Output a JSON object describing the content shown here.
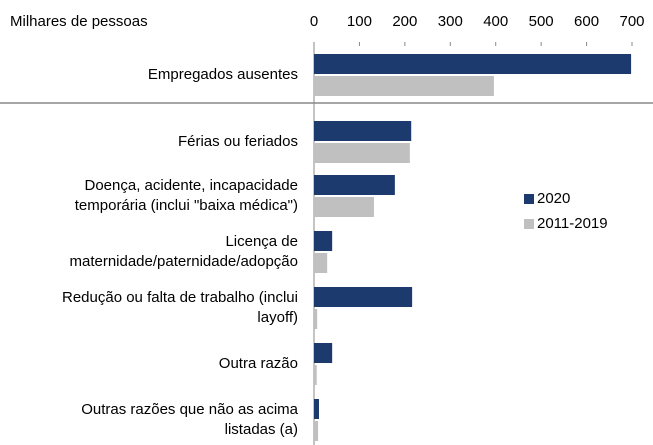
{
  "chart_data": {
    "type": "hbar",
    "axis_label": "Milhares de pessoas",
    "categories": [
      "Empregados ausentes",
      "Férias ou feriados",
      "Doença, acidente, incapacidade\ntemporária (inclui \"baixa médica\")",
      "Licença de\nmaternidade/paternidade/adopção",
      "Redução ou falta de trabalho (inclui\nlayoff)",
      "Outra razão",
      "Outras razões que não as acima\nlistadas (a)"
    ],
    "series": [
      {
        "name": "2020",
        "color": "#1c3a6e",
        "values": [
          698,
          214,
          178,
          40,
          216,
          40,
          11
        ]
      },
      {
        "name": "2011-2019",
        "color": "#c0c0c0",
        "values": [
          396,
          211,
          132,
          29,
          7,
          6,
          9
        ]
      }
    ],
    "xlim": [
      0,
      700
    ],
    "xticks": [
      0,
      100,
      200,
      300,
      400,
      500,
      600,
      700
    ]
  }
}
